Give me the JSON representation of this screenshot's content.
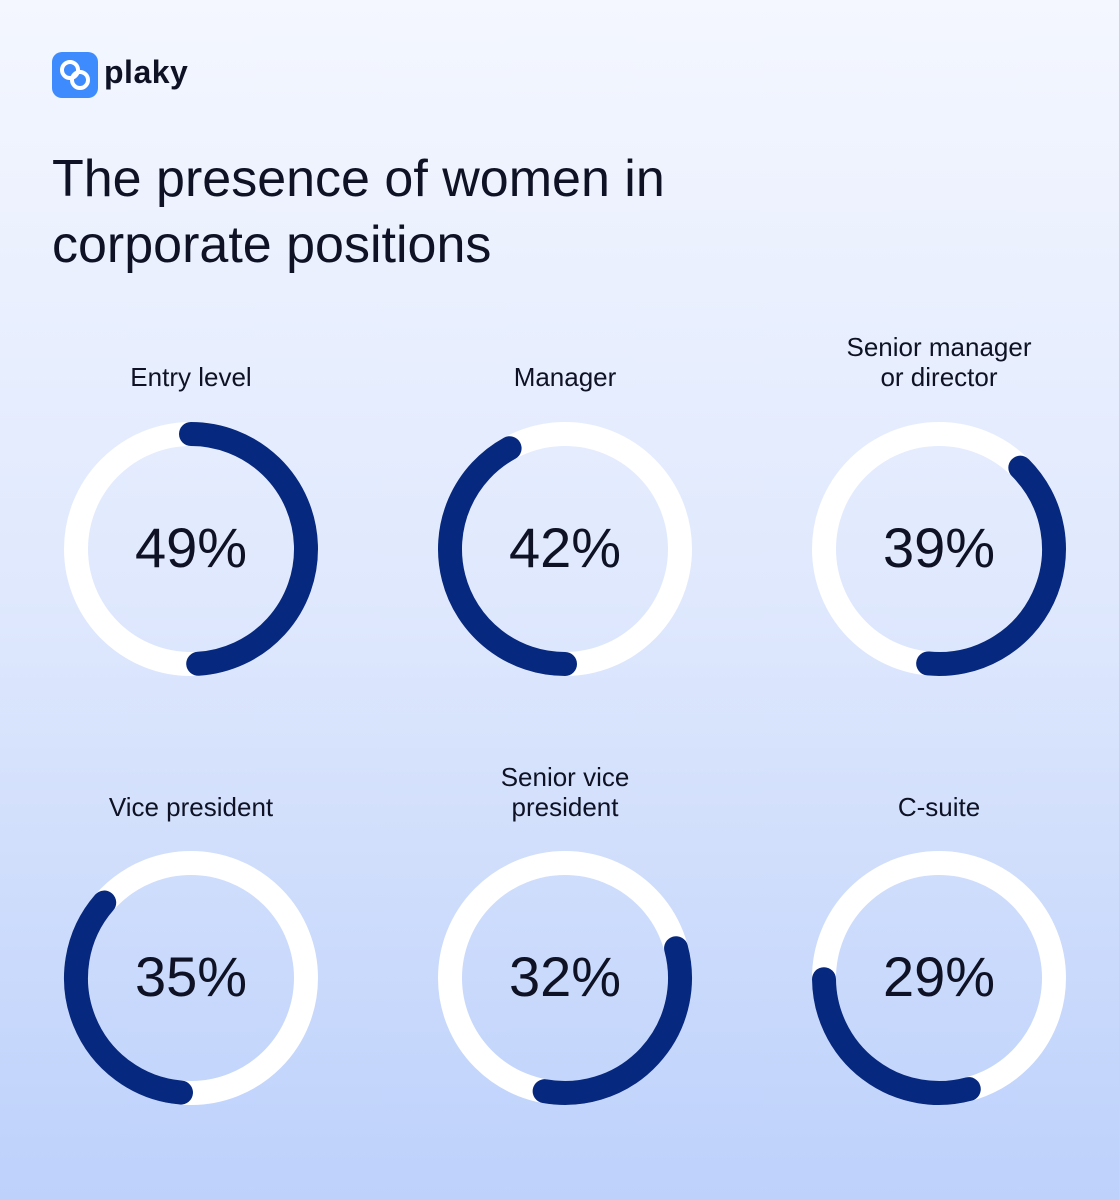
{
  "logo": "plaky",
  "title": "The presence of women in corporate positions",
  "chart_data": [
    {
      "type": "donut",
      "title": "Entry level",
      "values": [
        49
      ],
      "value_labels": [
        "49%"
      ],
      "color": "#06287e"
    },
    {
      "type": "donut",
      "title": "Manager",
      "values": [
        42
      ],
      "value_labels": [
        "42%"
      ],
      "color": "#06287e"
    },
    {
      "type": "donut",
      "title": "Senior manager or director",
      "values": [
        39
      ],
      "value_labels": [
        "39%"
      ],
      "color": "#06287e"
    },
    {
      "type": "donut",
      "title": "Vice president",
      "values": [
        35
      ],
      "value_labels": [
        "35%"
      ],
      "color": "#06287e"
    },
    {
      "type": "donut",
      "title": "Senior vice president",
      "values": [
        32
      ],
      "value_labels": [
        "32%"
      ],
      "color": "#06287e"
    },
    {
      "type": "donut",
      "title": "C-suite",
      "values": [
        29
      ],
      "value_labels": [
        "29%"
      ],
      "color": "#06287e"
    }
  ]
}
